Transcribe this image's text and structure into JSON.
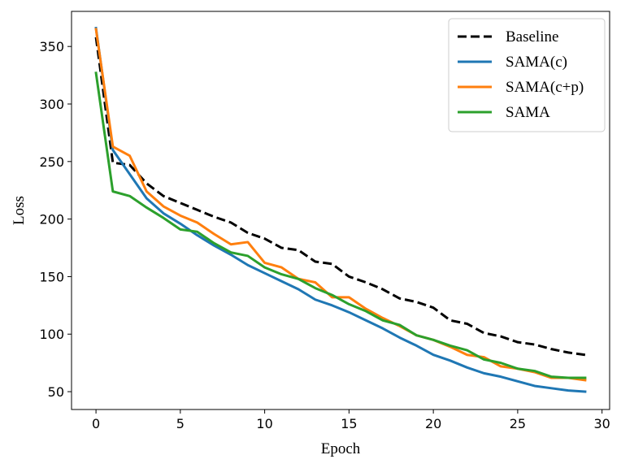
{
  "chart_data": {
    "type": "line",
    "title": "",
    "xlabel": "Epoch",
    "ylabel": "Loss",
    "xlim": [
      -1.45,
      30.45
    ],
    "ylim": [
      34.5,
      380.5
    ],
    "xticks": [
      0,
      5,
      10,
      15,
      20,
      25,
      30
    ],
    "xtick_labels": [
      "0",
      "5",
      "10",
      "15",
      "20",
      "25",
      "30"
    ],
    "yticks": [
      50,
      100,
      150,
      200,
      250,
      300,
      350
    ],
    "ytick_labels": [
      "50",
      "100",
      "150",
      "200",
      "250",
      "300",
      "350"
    ],
    "grid": false,
    "legend_position": "top-right",
    "x": [
      0,
      1,
      2,
      3,
      4,
      5,
      6,
      7,
      8,
      9,
      10,
      11,
      12,
      13,
      14,
      15,
      16,
      17,
      18,
      19,
      20,
      21,
      22,
      23,
      24,
      25,
      26,
      27,
      28,
      29
    ],
    "series": [
      {
        "name": "Baseline",
        "color": "#000000",
        "dashed": true,
        "values": [
          358,
          249,
          247,
          231,
          220,
          214,
          208,
          202,
          197,
          188,
          183,
          175,
          173,
          163,
          161,
          150,
          145,
          139,
          131,
          128,
          123,
          112,
          109,
          101,
          98,
          93,
          91,
          87,
          84,
          82
        ]
      },
      {
        "name": "SAMA(c)",
        "color": "#1f77b4",
        "dashed": false,
        "values": [
          366,
          260,
          239,
          218,
          205,
          196,
          186,
          177,
          169,
          160,
          153,
          146,
          139,
          130,
          125,
          119,
          112,
          105,
          97,
          90,
          82,
          77,
          71,
          66,
          63,
          59,
          55,
          53,
          51,
          50
        ]
      },
      {
        "name": "SAMA(c+p)",
        "color": "#ff7f0e",
        "dashed": false,
        "values": [
          365,
          263,
          255,
          224,
          211,
          203,
          197,
          187,
          178,
          180,
          162,
          158,
          148,
          145,
          132,
          132,
          122,
          114,
          107,
          99,
          95,
          89,
          82,
          80,
          72,
          70,
          67,
          62,
          62,
          60
        ]
      },
      {
        "name": "SAMA",
        "color": "#2ca02c",
        "dashed": false,
        "values": [
          327,
          224,
          220,
          210,
          201,
          191,
          189,
          179,
          171,
          168,
          158,
          152,
          148,
          140,
          134,
          126,
          120,
          112,
          108,
          99,
          95,
          90,
          86,
          78,
          75,
          70,
          68,
          63,
          62,
          62
        ]
      }
    ]
  }
}
